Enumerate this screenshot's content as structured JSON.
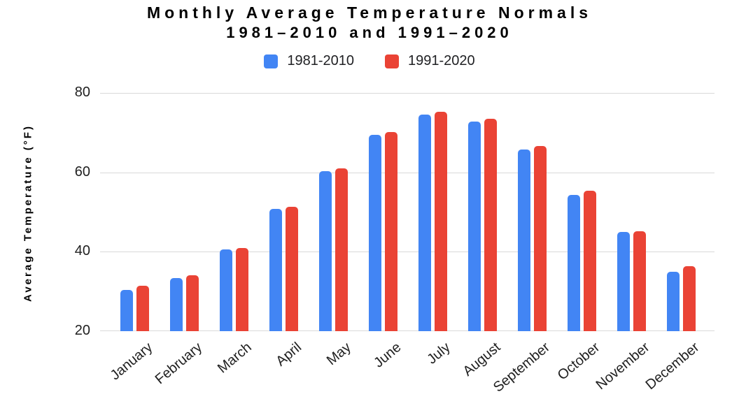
{
  "title": {
    "line1": "Monthly Average Temperature Normals",
    "line2": "1981–2010 and 1991–2020"
  },
  "colors": {
    "series1_blue": "#4285F4",
    "series2_red": "#EA4335",
    "gridline": "#D9D9D9",
    "axis_text": "#1F1F1F",
    "title_text": "#000000"
  },
  "chart_data": {
    "type": "bar",
    "title": "Monthly Average Temperature Normals 1981–2010 and 1991–2020",
    "categories": [
      "January",
      "February",
      "March",
      "April",
      "May",
      "June",
      "July",
      "August",
      "September",
      "October",
      "November",
      "December"
    ],
    "series": [
      {
        "name": "1981-2010",
        "color": "#4285F4",
        "values": [
          30.4,
          33.4,
          40.5,
          50.8,
          60.3,
          69.5,
          74.6,
          72.8,
          65.7,
          54.3,
          45.0,
          34.9
        ]
      },
      {
        "name": "1991-2020",
        "color": "#EA4335",
        "values": [
          31.4,
          34.0,
          41.0,
          51.4,
          61.0,
          70.1,
          75.3,
          73.5,
          66.7,
          55.3,
          45.1,
          36.4
        ]
      }
    ],
    "xlabel": "",
    "ylabel": "Average Temperature (°F)",
    "ylim": [
      20,
      80
    ],
    "yticks": [
      80,
      60,
      40,
      20
    ],
    "grid": true,
    "grid_color": "#D9D9D9",
    "legend_position": "top",
    "x_tick_rotation_deg": -40
  }
}
